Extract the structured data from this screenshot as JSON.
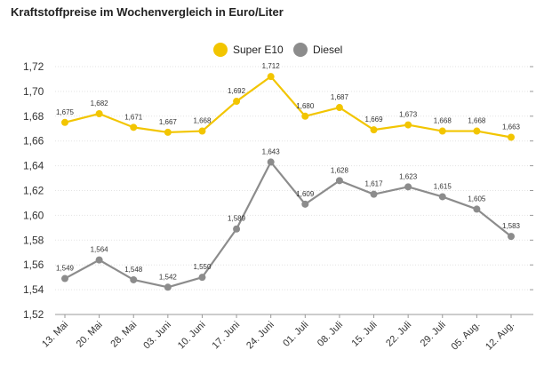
{
  "title": "Kraftstoffpreise im Wochenvergleich in Euro/Liter",
  "chart_data": {
    "type": "line",
    "categories": [
      "13. Mai",
      "20. Mai",
      "28. Mai",
      "03. Juni",
      "10. Juni",
      "17. Juni",
      "24. Juni",
      "01. Juli",
      "08. Juli",
      "15. Juli",
      "22. Juli",
      "29. Juli",
      "05. Aug.",
      "12. Aug."
    ],
    "series": [
      {
        "name": "Super E10",
        "color": "#f2c500",
        "values": [
          1.675,
          1.682,
          1.671,
          1.667,
          1.668,
          1.692,
          1.712,
          1.68,
          1.687,
          1.669,
          1.673,
          1.668,
          1.668,
          1.663
        ],
        "labels": [
          "1,675",
          "1,682",
          "1,671",
          "1,667",
          "1,668",
          "1,692",
          "1,712",
          "1,680",
          "1,687",
          "1,669",
          "1,673",
          "1,668",
          "1,668",
          "1,663"
        ]
      },
      {
        "name": "Diesel",
        "color": "#8c8c8c",
        "values": [
          1.549,
          1.564,
          1.548,
          1.542,
          1.55,
          1.589,
          1.643,
          1.609,
          1.628,
          1.617,
          1.623,
          1.615,
          1.605,
          1.583
        ],
        "labels": [
          "1,549",
          "1,564",
          "1,548",
          "1,542",
          "1,550",
          "1,589",
          "1,643",
          "1,609",
          "1,628",
          "1,617",
          "1,623",
          "1,615",
          "1,605",
          "1,583"
        ]
      }
    ],
    "yticks": [
      "1,52",
      "1,54",
      "1,56",
      "1,58",
      "1,60",
      "1,62",
      "1,64",
      "1,66",
      "1,68",
      "1,70",
      "1,72"
    ],
    "ylim": [
      1.52,
      1.72
    ],
    "grid": true,
    "legend": "top-center"
  }
}
